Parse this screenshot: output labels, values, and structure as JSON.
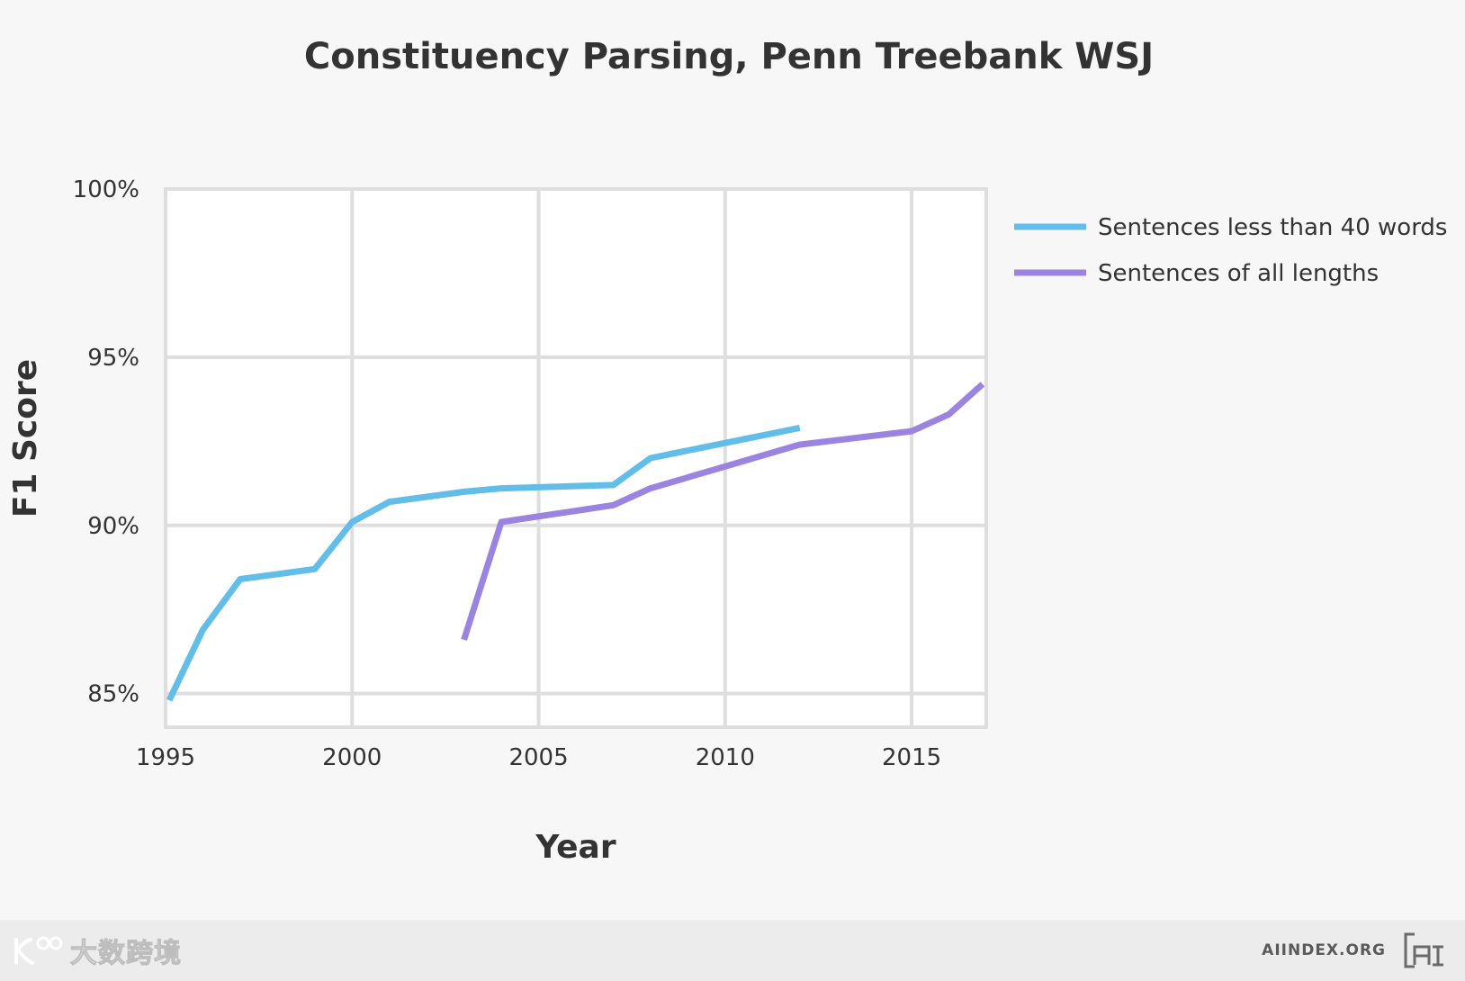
{
  "chart_data": {
    "type": "line",
    "title": "Constituency Parsing, Penn Treebank WSJ",
    "xlabel": "Year",
    "ylabel": "F1 Score",
    "xlim": [
      1995,
      2017
    ],
    "ylim": [
      84,
      100
    ],
    "xticks": [
      1995,
      2000,
      2005,
      2010,
      2015
    ],
    "xtick_labels": [
      "1995",
      "2000",
      "2005",
      "2010",
      "2015"
    ],
    "yticks": [
      85,
      90,
      95,
      100
    ],
    "ytick_labels": [
      "85%",
      "90%",
      "95%",
      "100%"
    ],
    "grid": true,
    "legend_position": "right",
    "series": [
      {
        "name": "Sentences less than 40 words",
        "color": "#62bde8",
        "x": [
          1995.1,
          1996,
          1997,
          1999,
          2000,
          2001,
          2003,
          2004,
          2007,
          2008,
          2012
        ],
        "y": [
          84.8,
          86.9,
          88.4,
          88.7,
          90.1,
          90.7,
          91.0,
          91.1,
          91.2,
          92.0,
          92.9
        ]
      },
      {
        "name": "Sentences of all lengths",
        "color": "#9b84e0",
        "x": [
          2003,
          2004,
          2007,
          2008,
          2012,
          2015,
          2016,
          2016.9
        ],
        "y": [
          86.6,
          90.1,
          90.6,
          91.1,
          92.4,
          92.8,
          93.3,
          94.2
        ]
      }
    ]
  },
  "footer": {
    "watermark": "大数跨境",
    "site": "AIINDEX.ORG",
    "logo_icon": "ai-index-logo-icon",
    "watermark_icon": "watermark-logo-icon"
  }
}
